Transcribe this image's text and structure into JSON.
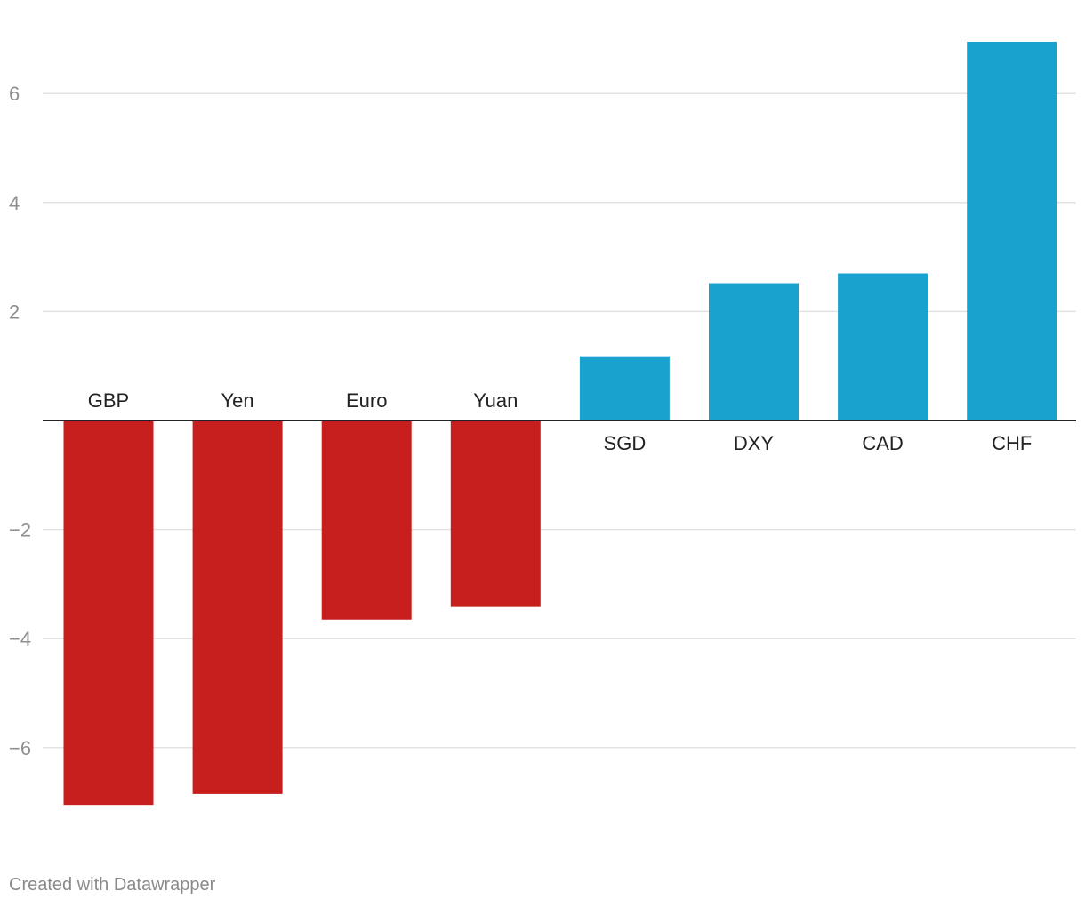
{
  "chart_data": {
    "type": "bar",
    "categories": [
      "GBP",
      "Yen",
      "Euro",
      "Yuan",
      "SGD",
      "DXY",
      "CAD",
      "CHF"
    ],
    "values": [
      -7.05,
      -6.85,
      -3.65,
      -3.42,
      1.18,
      2.52,
      2.7,
      6.95
    ],
    "ylim": [
      -7.4,
      7.4
    ],
    "yticks": [
      6,
      4,
      2,
      -2,
      -4,
      -6
    ],
    "ytick_labels": [
      "6",
      "4",
      "2",
      "−2",
      "−4",
      "−6"
    ],
    "grid": true,
    "colors": {
      "negative": "#c71e1e",
      "positive": "#1aa2cf",
      "grid": "#e3e3e3",
      "zero_line": "#222222"
    }
  },
  "footer": {
    "credit": "Created with Datawrapper"
  }
}
